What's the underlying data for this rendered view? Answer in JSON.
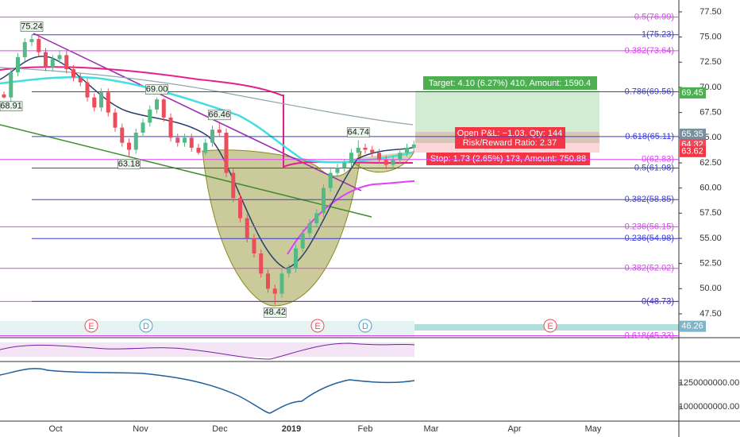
{
  "chart_data": {
    "type": "candlestick",
    "open": [
      69.3,
      69.0,
      71.5,
      73.0,
      74.5,
      74.8,
      73.5,
      72.0,
      72.8,
      73.2,
      71.8,
      71.0,
      70.5,
      69.0,
      68.0,
      69.5,
      67.5,
      66.0,
      64.5,
      63.8,
      65.5,
      66.5,
      67.8,
      68.8,
      67.0,
      65.0,
      64.5,
      65.0,
      64.0,
      63.5,
      64.5,
      65.8,
      65.5,
      61.5,
      59.0,
      57.0,
      55.0,
      53.5,
      51.5,
      50.0,
      49.5,
      51.5,
      52.0,
      54.0,
      55.5,
      56.5,
      57.5,
      60.0,
      61.5,
      62.0,
      62.5,
      63.5,
      64.0,
      63.8,
      63.5,
      62.8,
      62.3,
      62.8,
      63.5,
      64.0
    ],
    "high": [
      69.6,
      71.9,
      73.4,
      74.9,
      75.24,
      75.2,
      73.9,
      73.2,
      73.6,
      73.6,
      72.2,
      71.4,
      70.9,
      69.4,
      69.9,
      69.9,
      67.9,
      66.4,
      64.9,
      65.9,
      66.9,
      68.2,
      69.0,
      68.9,
      67.4,
      65.4,
      65.4,
      65.4,
      64.4,
      64.9,
      66.2,
      66.46,
      65.9,
      61.9,
      59.4,
      57.4,
      55.4,
      53.9,
      51.9,
      50.4,
      51.9,
      52.4,
      54.4,
      55.9,
      56.9,
      57.9,
      60.4,
      61.9,
      62.4,
      62.9,
      63.9,
      64.74,
      64.4,
      64.2,
      63.9,
      63.2,
      63.2,
      63.9,
      64.4,
      64.7
    ],
    "low": [
      68.91,
      68.6,
      71.1,
      72.6,
      74.1,
      73.1,
      71.6,
      71.6,
      72.4,
      71.4,
      70.6,
      70.1,
      68.6,
      67.6,
      67.6,
      67.1,
      65.6,
      64.1,
      63.18,
      63.4,
      65.1,
      66.1,
      67.4,
      66.6,
      64.6,
      64.1,
      64.1,
      63.6,
      63.3,
      63.3,
      64.1,
      65.1,
      61.1,
      58.6,
      56.6,
      54.6,
      53.1,
      51.1,
      49.6,
      48.42,
      49.1,
      51.1,
      51.6,
      53.6,
      55.1,
      56.1,
      57.1,
      59.6,
      61.1,
      61.6,
      62.1,
      63.1,
      63.4,
      63.1,
      62.4,
      61.9,
      61.9,
      62.4,
      63.1,
      63.6
    ],
    "close": [
      69.0,
      71.5,
      73.0,
      74.5,
      74.8,
      73.5,
      72.0,
      72.8,
      73.2,
      71.8,
      71.0,
      70.5,
      69.0,
      68.0,
      69.5,
      67.5,
      66.0,
      64.5,
      63.8,
      65.5,
      66.5,
      67.8,
      68.8,
      67.0,
      65.0,
      64.5,
      65.0,
      64.0,
      63.5,
      64.5,
      65.8,
      65.5,
      61.5,
      59.0,
      57.0,
      55.0,
      53.5,
      51.5,
      50.0,
      49.5,
      51.5,
      52.0,
      54.0,
      55.5,
      56.5,
      57.5,
      60.0,
      61.5,
      62.0,
      62.5,
      63.5,
      64.0,
      63.8,
      63.5,
      62.8,
      62.3,
      62.8,
      63.5,
      64.0,
      64.32
    ],
    "up_color": "#53b987",
    "down_color": "#eb4d5c",
    "ylim": [
      45.13,
      78.68
    ],
    "yticks": [
      {
        "value": 77.5,
        "label": "77.50"
      },
      {
        "value": 75,
        "label": "75.00"
      },
      {
        "value": 72.5,
        "label": "72.50"
      },
      {
        "value": 70,
        "label": "70.00"
      },
      {
        "value": 67.5,
        "label": "67.50"
      },
      {
        "value": 65,
        "label": "65.00"
      },
      {
        "value": 62.5,
        "label": "62.50"
      },
      {
        "value": 60,
        "label": "60.00"
      },
      {
        "value": 57.5,
        "label": "57.50"
      },
      {
        "value": 55,
        "label": "55.00"
      },
      {
        "value": 52.5,
        "label": "52.50"
      },
      {
        "value": 50,
        "label": "50.00"
      },
      {
        "value": 47.5,
        "label": "47.50"
      }
    ],
    "xticks": [
      "Oct",
      "Nov",
      "Dec",
      "2019",
      "Feb",
      "Mar",
      "Apr",
      "May"
    ],
    "fib_levels": [
      {
        "label": "0.5(76.99)",
        "value": 76.99,
        "color": "#e040fb"
      },
      {
        "label": "1(75.23)",
        "value": 75.23,
        "color": "#3d3ddb"
      },
      {
        "label": "0.382(73.64)",
        "value": 73.64,
        "color": "#e040fb"
      },
      {
        "label": "0.786(69.56)",
        "value": 69.56,
        "color": "#3d3ddb"
      },
      {
        "label": "0.618(65.11)",
        "value": 65.11,
        "color": "#3d3ddb"
      },
      {
        "label": "0(62.83)",
        "value": 62.83,
        "color": "#e040fb"
      },
      {
        "label": "0.5(61.98)",
        "value": 61.98,
        "color": "#3d3ddb"
      },
      {
        "label": "0.382(58.85)",
        "value": 58.85,
        "color": "#3d3ddb"
      },
      {
        "label": "0.236(56.15)",
        "value": 56.15,
        "color": "#e040fb"
      },
      {
        "label": "0.236(54.98)",
        "value": 54.98,
        "color": "#3d3ddb"
      },
      {
        "label": "0.382(52.02)",
        "value": 52.02,
        "color": "#e040fb"
      },
      {
        "label": "0(48.73)",
        "value": 48.73,
        "color": "#e040fb"
      },
      {
        "label": "0(48.73)",
        "value": 48.73,
        "color": "#3d3ddb"
      },
      {
        "label": "0.618(45.33)",
        "value": 45.33,
        "color": "#e040fb"
      }
    ],
    "price_tags": [
      {
        "value": 69.45,
        "label": "69.45",
        "color": "#4caf50"
      },
      {
        "value": 65.35,
        "label": "65.35",
        "color": "#78909c"
      },
      {
        "value": 64.32,
        "label": "64.32",
        "color": "#eb4d5c"
      },
      {
        "value": 63.62,
        "label": "63.62",
        "color": "#f23645"
      },
      {
        "value": 46.26,
        "label": "46.26",
        "color": "#7fb5c9"
      }
    ],
    "annotations": [
      {
        "value": 75.24,
        "label": "75.24"
      },
      {
        "value": 68.91,
        "label": "68.91"
      },
      {
        "value": 69.0,
        "label": "69.00"
      },
      {
        "value": 66.46,
        "label": "66.46"
      },
      {
        "value": 63.18,
        "label": "63.18"
      },
      {
        "value": 48.42,
        "label": "48.42"
      },
      {
        "value": 64.74,
        "label": "64.74"
      }
    ],
    "position": {
      "target": "Target: 4.10 (6.27%) 410, Amount: 1590.4",
      "pnl": "Open P&L: −1.03, Qty: 144",
      "ratio": "Risk/Reward Ratio: 2.37",
      "stop": "Stop: 1.73 (2.65%) 173, Amount: 750.88"
    },
    "events": [
      "E",
      "D",
      "E",
      "D",
      "E"
    ],
    "lower_ticks": [
      {
        "value": 1250000000,
        "label": "1250000000.00"
      },
      {
        "value": 1000000000,
        "label": "1000000000.00"
      }
    ]
  }
}
